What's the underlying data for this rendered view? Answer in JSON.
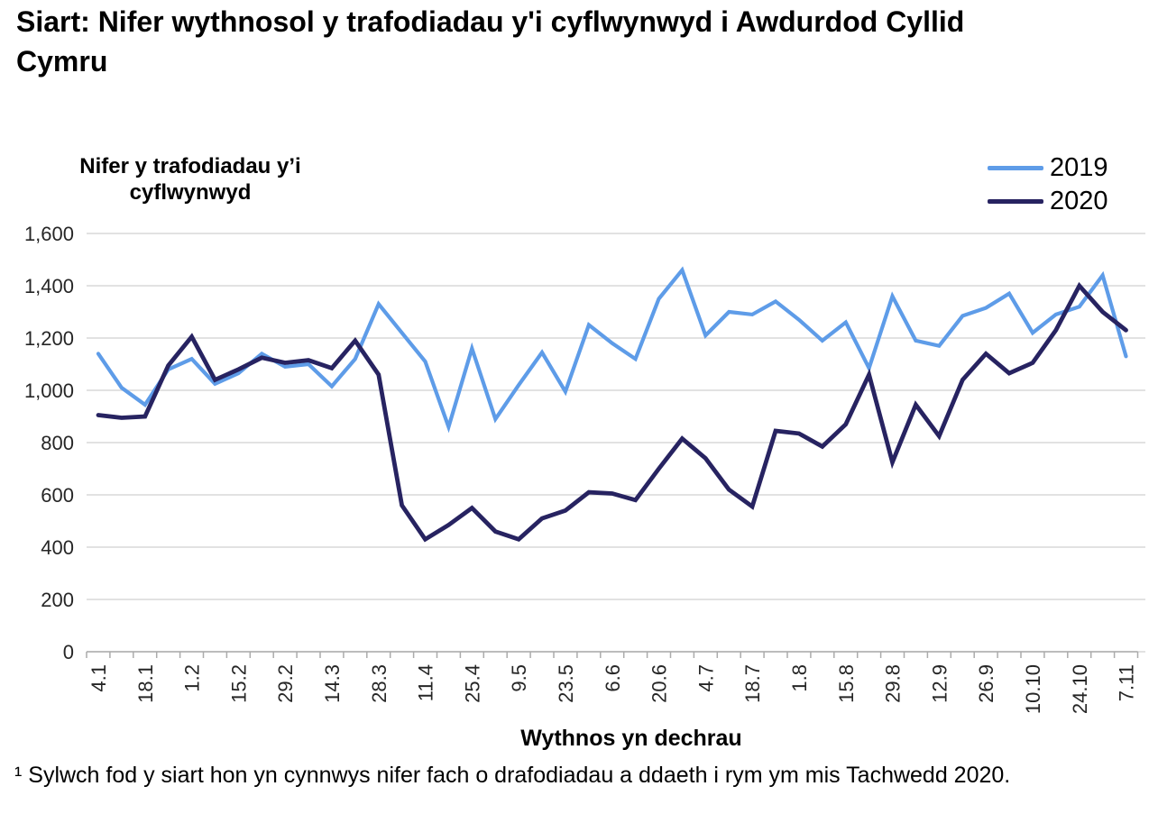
{
  "title": "Siart: Nifer wythnosol y trafodiadau y'i cyflwynwyd i Awdurdod Cyllid Cymru",
  "y_axis_title": "Nifer y trafodiadau y’i cyflwynwyd",
  "x_axis_title": "Wythnos yn dechrau",
  "footnote": "¹ Sylwch fod y siart hon yn cynnwys nifer fach o drafodiadau a ddaeth i rym ym mis Tachwedd 2020.",
  "legend": {
    "position": "top-right",
    "items": [
      {
        "label": "2019",
        "color": "#5E9CE8"
      },
      {
        "label": "2020",
        "color": "#272361"
      }
    ]
  },
  "colors": {
    "series_2019": "#5E9CE8",
    "series_2020": "#272361",
    "gridline": "#D9D9D9",
    "axis": "#ABABAB",
    "tick_text": "#262626"
  },
  "chart_data": {
    "type": "line",
    "title": "Siart: Nifer wythnosol y trafodiadau y'i cyflwynwyd i Awdurdod Cyllid Cymru",
    "xlabel": "Wythnos yn dechrau",
    "ylabel": "Nifer y trafodiadau y’i cyflwynwyd",
    "x": [
      "4.1",
      "11.1",
      "18.1",
      "25.1",
      "1.2",
      "8.2",
      "15.2",
      "22.2",
      "29.2",
      "7.3",
      "14.3",
      "21.3",
      "28.3",
      "4.4",
      "11.4",
      "18.4",
      "25.4",
      "2.5",
      "9.5",
      "16.5",
      "23.5",
      "30.5",
      "6.6",
      "13.6",
      "20.6",
      "27.6",
      "4.7",
      "11.7",
      "18.7",
      "25.7",
      "1.8",
      "8.8",
      "15.8",
      "22.8",
      "29.8",
      "5.9",
      "12.9",
      "19.9",
      "26.9",
      "3.10",
      "10.10",
      "17.10",
      "24.10",
      "31.10",
      "7.11"
    ],
    "x_labels_shown": [
      "4.1",
      "18.1",
      "1.2",
      "15.2",
      "29.2",
      "14.3",
      "28.3",
      "11.4",
      "25.4",
      "9.5",
      "23.5",
      "6.6",
      "20.6",
      "4.7",
      "18.7",
      "1.8",
      "15.8",
      "29.8",
      "12.9",
      "26.9",
      "10.10",
      "24.10",
      "7.11"
    ],
    "x_label_every": 2,
    "series": [
      {
        "name": "2019",
        "color": "#5E9CE8",
        "values": [
          1140,
          1010,
          945,
          1080,
          1120,
          1025,
          1065,
          1140,
          1090,
          1100,
          1015,
          1120,
          1330,
          1220,
          1110,
          860,
          1160,
          890,
          1020,
          1145,
          995,
          1250,
          1180,
          1120,
          1350,
          1460,
          1210,
          1300,
          1290,
          1340,
          1270,
          1190,
          1260,
          1085,
          1360,
          1190,
          1170,
          1285,
          1315,
          1370,
          1220,
          1290,
          1320,
          1440,
          1130
        ]
      },
      {
        "name": "2020",
        "color": "#272361",
        "values": [
          905,
          895,
          900,
          1095,
          1205,
          1040,
          1080,
          1125,
          1105,
          1115,
          1085,
          1190,
          1060,
          560,
          430,
          485,
          550,
          460,
          430,
          510,
          540,
          610,
          605,
          580,
          700,
          815,
          740,
          620,
          555,
          845,
          835,
          785,
          870,
          1060,
          725,
          945,
          825,
          1040,
          1140,
          1065,
          1105,
          1230,
          1400,
          1300,
          1230
        ]
      }
    ],
    "ylim": [
      0,
      1600
    ],
    "y_step": 200,
    "y_ticks": [
      "0",
      "200",
      "400",
      "600",
      "800",
      "1,000",
      "1,200",
      "1,400",
      "1,600"
    ],
    "grid": "horizontal",
    "legend_position": "top-right"
  }
}
